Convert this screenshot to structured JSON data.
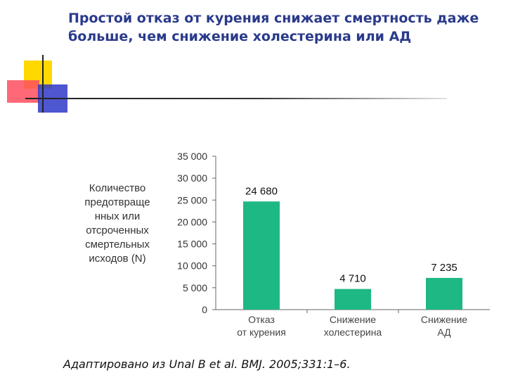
{
  "slide": {
    "title": "Простой отказ от курения снижает смертность даже больше, чем снижение холестерина или АД",
    "source": "Адаптировано из Unal B et al. BMJ. 2005;331:1–6."
  },
  "colors": {
    "bar": "#1db883",
    "title": "#2a3a8c"
  },
  "chart_data": {
    "type": "bar",
    "ylabel": "Количество предотвращенных или отсроченных смертельных исходов (N)",
    "ylabel_lines": [
      "Количество",
      "предотвраще",
      "нных или",
      "отсроченных",
      "смертельных",
      "исходов (N)"
    ],
    "categories": [
      "Отказ от курения",
      "Снижение холестерина",
      "Снижение АД"
    ],
    "category_lines": [
      [
        "Отказ",
        "от курения"
      ],
      [
        "Снижение",
        "холестерина"
      ],
      [
        "Снижение",
        "АД"
      ]
    ],
    "values": [
      24680,
      4710,
      7235
    ],
    "data_labels": [
      "24 680",
      "4 710",
      "7 235"
    ],
    "ylim": [
      0,
      35000
    ],
    "yticks": [
      0,
      5000,
      10000,
      15000,
      20000,
      25000,
      30000,
      35000
    ],
    "ytick_labels": [
      "0",
      "5 000",
      "10 000",
      "15 000",
      "20 000",
      "25 000",
      "30 000",
      "35 000"
    ]
  }
}
